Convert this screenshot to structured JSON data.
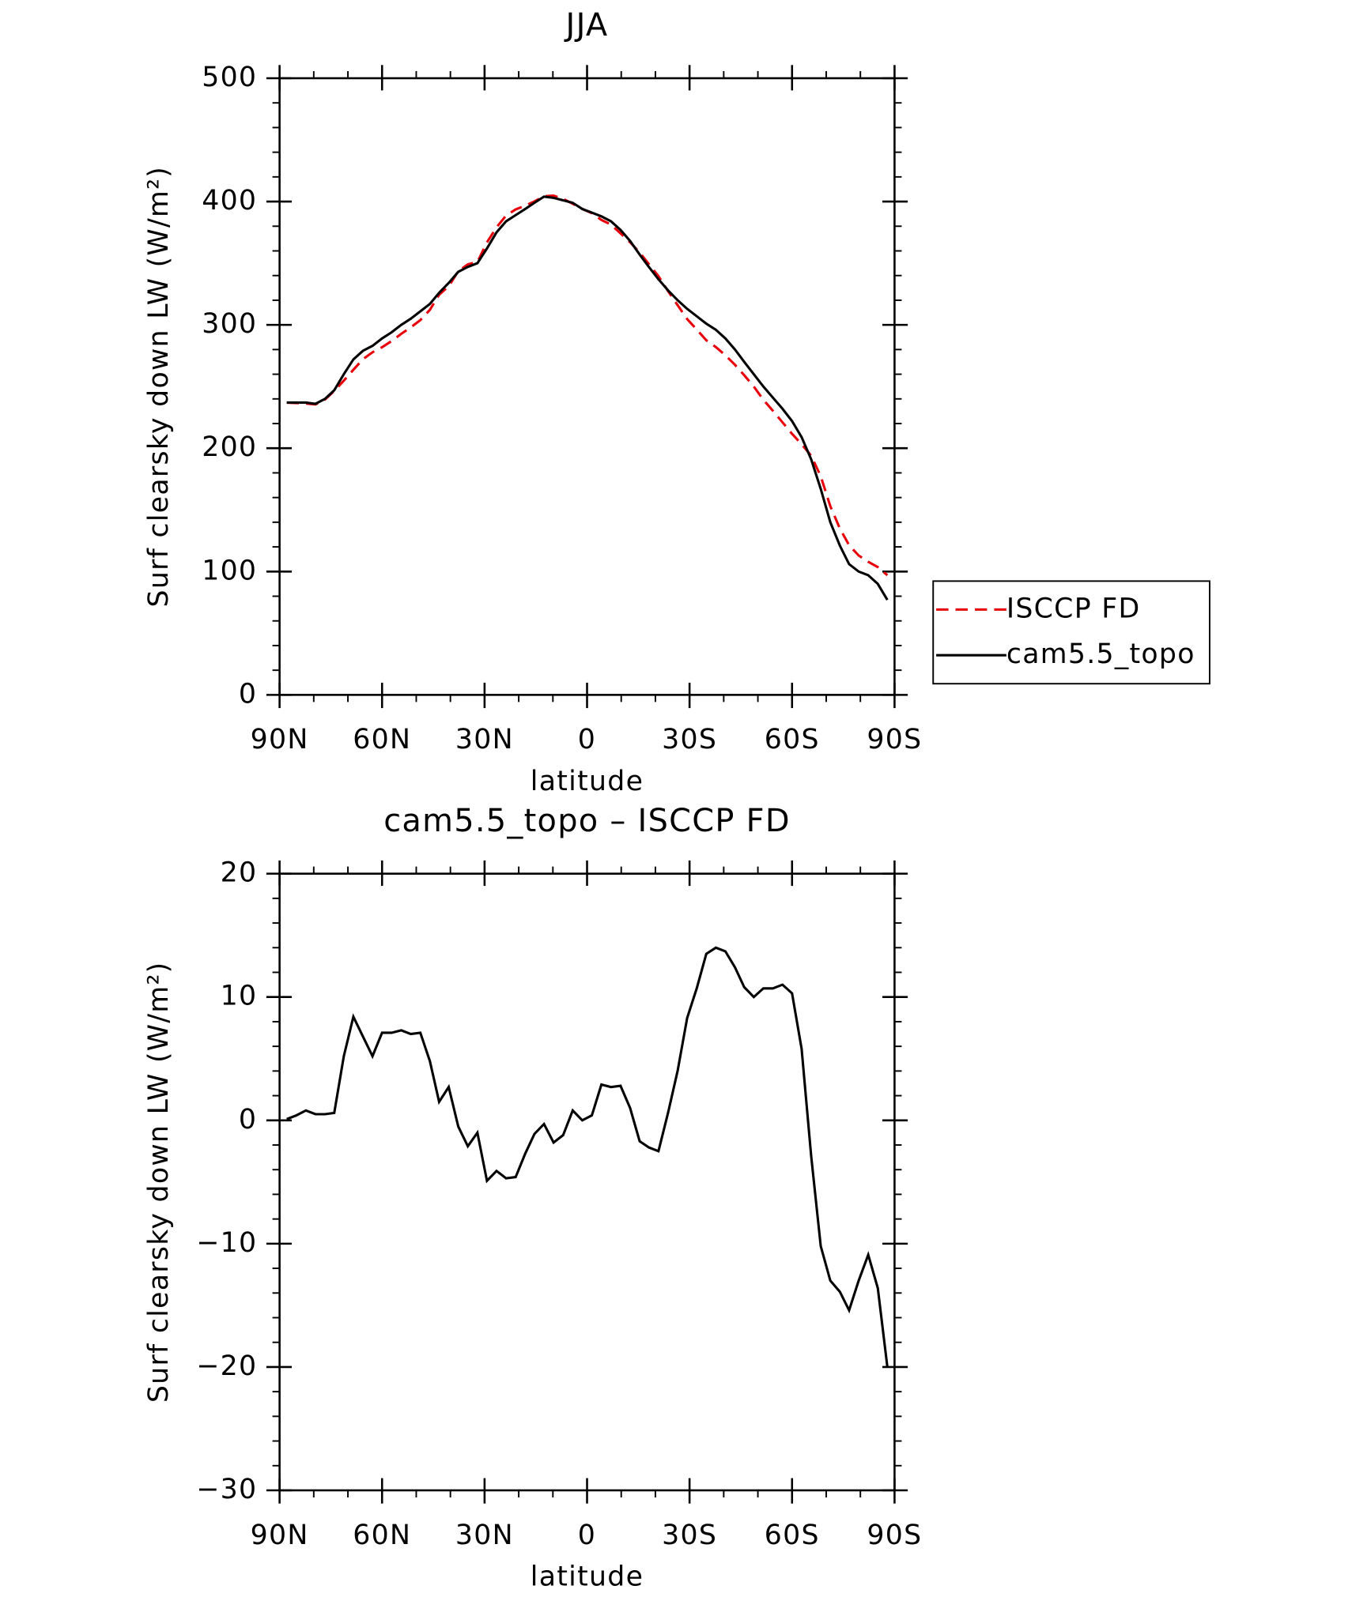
{
  "chart_data": [
    {
      "type": "line",
      "title": "JJA",
      "xlabel": "latitude",
      "ylabel": "Surf clearsky down LW (W/m²)",
      "x": [
        87.9,
        85.1,
        82.3,
        79.5,
        76.7,
        74.0,
        71.2,
        68.4,
        65.6,
        62.8,
        60.0,
        57.2,
        54.4,
        51.6,
        48.8,
        46.0,
        43.3,
        40.5,
        37.7,
        34.9,
        32.1,
        29.3,
        26.5,
        23.7,
        20.9,
        18.1,
        15.4,
        12.6,
        9.8,
        7.0,
        4.2,
        1.4,
        -1.4,
        -4.2,
        -7.0,
        -9.8,
        -12.6,
        -15.4,
        -18.1,
        -20.9,
        -23.7,
        -26.5,
        -29.3,
        -32.1,
        -34.9,
        -37.7,
        -40.5,
        -43.3,
        -46.0,
        -48.8,
        -51.6,
        -54.4,
        -57.2,
        -60.0,
        -62.8,
        -65.6,
        -68.4,
        -71.2,
        -74.0,
        -76.7,
        -79.5,
        -82.3,
        -85.1,
        -87.9
      ],
      "series": [
        {
          "name": "ISCCP FD",
          "color": "#e8000b",
          "dash": true,
          "values": [
            236.9,
            236.6,
            236.2,
            235.5,
            239.5,
            246.4,
            254.8,
            263.6,
            272.2,
            277.8,
            281.9,
            286.9,
            292.7,
            298.0,
            303.9,
            312.2,
            324.5,
            331.3,
            343.5,
            349.1,
            351.0,
            366.9,
            379.1,
            388.7,
            393.6,
            396.7,
            400.1,
            404.3,
            404.8,
            402.2,
            398.2,
            394.0,
            390.6,
            385.1,
            381.3,
            374.2,
            367.0,
            358.7,
            349.2,
            339.5,
            327.4,
            316.0,
            304.7,
            296.3,
            287.5,
            282.0,
            275.3,
            267.6,
            259.2,
            250.0,
            239.3,
            230.3,
            221.0,
            211.7,
            203.2,
            193.9,
            177.2,
            153.0,
            134.9,
            121.4,
            113.0,
            107.9,
            103.6,
            97.0
          ]
        },
        {
          "name": "cam5.5_topo",
          "color": "#000000",
          "dash": false,
          "values": [
            237,
            237,
            237,
            236,
            240,
            247,
            260,
            272,
            279,
            283,
            289,
            294,
            300,
            305,
            311,
            317,
            326,
            334,
            343,
            347,
            350,
            362,
            375,
            384,
            389,
            394,
            399,
            404,
            403,
            401,
            399,
            394,
            391,
            388,
            384,
            377,
            368,
            357,
            347,
            337,
            328,
            320,
            313,
            307,
            301,
            296,
            289,
            280,
            270,
            260,
            250,
            241,
            232,
            222,
            209,
            191,
            167,
            140,
            121,
            106,
            100,
            97,
            90,
            77
          ]
        }
      ],
      "xlim": [
        90,
        -90
      ],
      "xticks": [
        {
          "value": 90,
          "label": "90N"
        },
        {
          "value": 60,
          "label": "60N"
        },
        {
          "value": 30,
          "label": "30N"
        },
        0,
        {
          "value": -30,
          "label": "30S"
        },
        {
          "value": -60,
          "label": "60S"
        },
        {
          "value": -90,
          "label": "90S"
        }
      ],
      "ylim": [
        0,
        500
      ],
      "yticks": [
        0,
        100,
        200,
        300,
        400,
        500
      ],
      "legend": "right"
    },
    {
      "type": "line",
      "title": "cam5.5_topo – ISCCP FD",
      "xlabel": "latitude",
      "ylabel": "Surf clearsky down LW (W/m²)",
      "x": [
        87.9,
        85.1,
        82.3,
        79.5,
        76.7,
        74.0,
        71.2,
        68.4,
        65.6,
        62.8,
        60.0,
        57.2,
        54.4,
        51.6,
        48.8,
        46.0,
        43.3,
        40.5,
        37.7,
        34.9,
        32.1,
        29.3,
        26.5,
        23.7,
        20.9,
        18.1,
        15.4,
        12.6,
        9.8,
        7.0,
        4.2,
        1.4,
        -1.4,
        -4.2,
        -7.0,
        -9.8,
        -12.6,
        -15.4,
        -18.1,
        -20.9,
        -23.7,
        -26.5,
        -29.3,
        -32.1,
        -34.9,
        -37.7,
        -40.5,
        -43.3,
        -46.0,
        -48.8,
        -51.6,
        -54.4,
        -57.2,
        -60.0,
        -62.8,
        -65.6,
        -68.4,
        -71.2,
        -74.0,
        -76.7,
        -79.5,
        -82.3,
        -85.1,
        -87.9
      ],
      "series": [
        {
          "color": "#000000",
          "dash": false,
          "values": [
            0.1,
            0.4,
            0.8,
            0.5,
            0.5,
            0.6,
            5.2,
            8.4,
            6.8,
            5.2,
            7.1,
            7.1,
            7.3,
            7.0,
            7.1,
            4.8,
            1.5,
            2.7,
            -0.5,
            -2.1,
            -1.0,
            -4.9,
            -4.1,
            -4.7,
            -4.6,
            -2.7,
            -1.1,
            -0.3,
            -1.8,
            -1.2,
            0.8,
            0.0,
            0.4,
            2.9,
            2.7,
            2.8,
            1.0,
            -1.7,
            -2.2,
            -2.5,
            0.6,
            4.0,
            8.3,
            10.7,
            13.5,
            14.0,
            13.7,
            12.4,
            10.8,
            10.0,
            10.7,
            10.7,
            11.0,
            10.3,
            5.8,
            -2.9,
            -10.2,
            -13.0,
            -13.9,
            -15.4,
            -13.0,
            -10.9,
            -13.6,
            -20.0
          ]
        }
      ],
      "xlim": [
        90,
        -90
      ],
      "xticks": [
        {
          "value": 90,
          "label": "90N"
        },
        {
          "value": 60,
          "label": "60N"
        },
        {
          "value": 30,
          "label": "30N"
        },
        0,
        {
          "value": -30,
          "label": "30S"
        },
        {
          "value": -60,
          "label": "60S"
        },
        {
          "value": -90,
          "label": "90S"
        }
      ],
      "ylim": [
        -30,
        20
      ],
      "yticks": [
        {
          "value": -30,
          "label": "−30"
        },
        {
          "value": -20,
          "label": "−20"
        },
        {
          "value": -10,
          "label": "−10"
        },
        0,
        10,
        20
      ]
    }
  ]
}
